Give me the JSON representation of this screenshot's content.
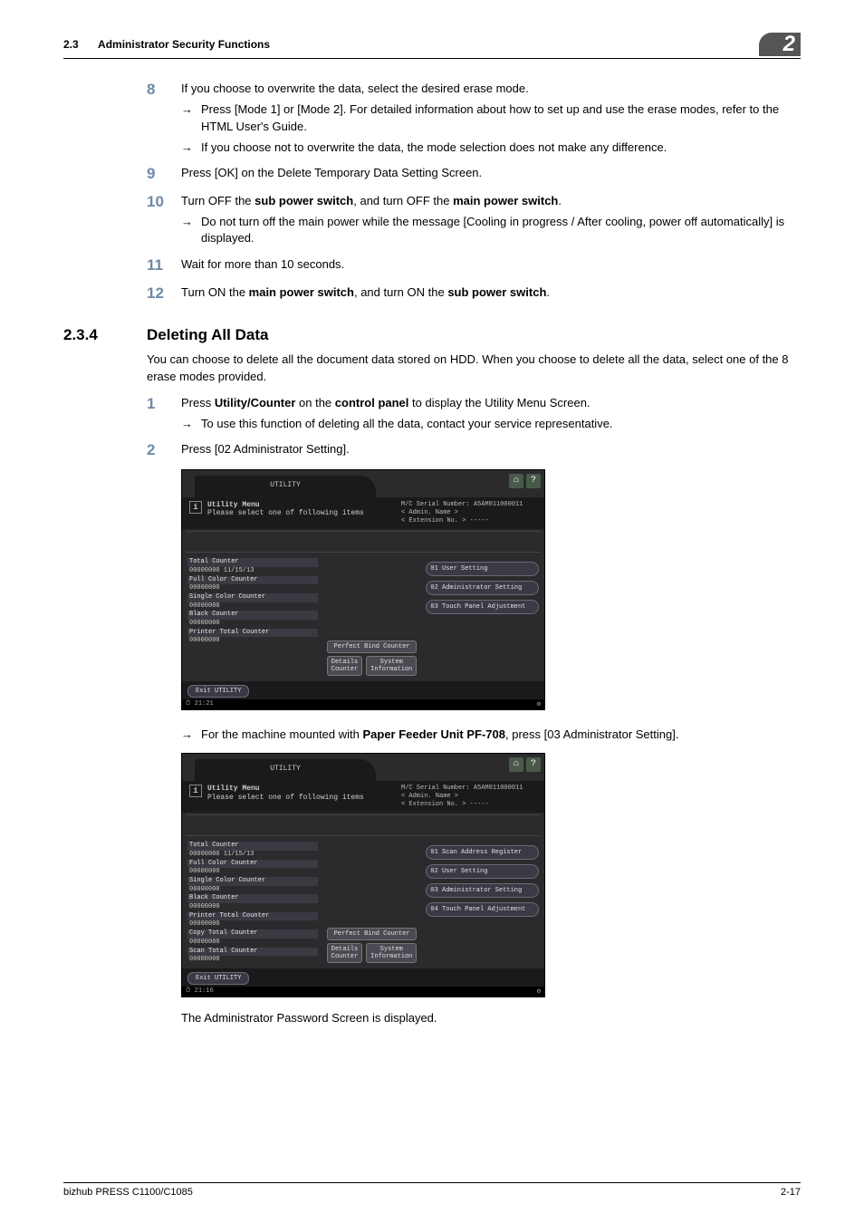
{
  "header": {
    "section_number": "2.3",
    "section_title": "Administrator Security Functions",
    "chapter_badge": "2"
  },
  "steps_a": [
    {
      "n": "8",
      "text": "If you choose to overwrite the data, select the desired erase mode.",
      "subs": [
        "Press [Mode 1] or [Mode 2]. For detailed information about how to set up and use the erase modes, refer to the HTML User's Guide.",
        "If you choose not to overwrite the data, the mode selection does not make any difference."
      ]
    },
    {
      "n": "9",
      "text": "Press [OK] on the Delete Temporary Data Setting Screen.",
      "subs": []
    },
    {
      "n": "10",
      "text_html": "Turn OFF the <b>sub power switch</b>, and turn OFF the <b>main power switch</b>.",
      "subs": [
        "Do not turn off the main power while the message [Cooling in progress / After cooling, power off automatically] is displayed."
      ]
    },
    {
      "n": "11",
      "text": "Wait for more than 10 seconds.",
      "subs": []
    },
    {
      "n": "12",
      "text_html": "Turn ON the <b>main power switch</b>, and turn ON the <b>sub power switch</b>.",
      "subs": []
    }
  ],
  "section234": {
    "num": "2.3.4",
    "title": "Deleting All Data",
    "intro": "You can choose to delete all the document data stored on HDD. When you choose to delete all the data, select one of the 8 erase modes provided."
  },
  "steps_b": [
    {
      "n": "1",
      "text_html": "Press <b>Utility/Counter</b> on the <b>control panel</b> to display the Utility Menu Screen.",
      "subs": [
        "To use this function of deleting all the data, contact your service representative."
      ]
    },
    {
      "n": "2",
      "text": "Press [02 Administrator Setting].",
      "subs": []
    }
  ],
  "after_screen1_sub_html": "For the machine mounted with <b>Paper Feeder Unit PF-708</b>, press [03 Administrator Setting].",
  "after_screen2_text": "The Administrator Password Screen is displayed.",
  "screen_common": {
    "tab": "UTILITY",
    "title_line1": "Utility Menu",
    "title_line2": "Please select one of following items",
    "serial": "M/C Serial Number: A5AM011000011",
    "admin": "< Admin. Name >",
    "ext": "< Extension No. >  -----",
    "perfect_bind": "Perfect Bind Counter",
    "details": "Details Counter",
    "sysinfo": "System Information",
    "exit": "Exit UTILITY",
    "status_icon": "⚙"
  },
  "screen1": {
    "counters": [
      {
        "hdr": true,
        "t": "Total Counter"
      },
      {
        "hdr": false,
        "t": "00000000   11/15/13"
      },
      {
        "hdr": true,
        "t": "Full Color Counter"
      },
      {
        "hdr": false,
        "t": "00000000"
      },
      {
        "hdr": true,
        "t": "Single Color Counter"
      },
      {
        "hdr": false,
        "t": "00000000"
      },
      {
        "hdr": true,
        "t": "Black Counter"
      },
      {
        "hdr": false,
        "t": "00000000"
      },
      {
        "hdr": true,
        "t": "Printer Total Counter"
      },
      {
        "hdr": false,
        "t": "00000000"
      }
    ],
    "menus": [
      "01 User Setting",
      "02 Administrator Setting",
      "03 Touch Panel Adjustment"
    ],
    "time": "⏱ 21:21"
  },
  "screen2": {
    "counters": [
      {
        "hdr": true,
        "t": "Total Counter"
      },
      {
        "hdr": false,
        "t": "00000000   11/15/13"
      },
      {
        "hdr": true,
        "t": "Full Color Counter"
      },
      {
        "hdr": false,
        "t": "00000000"
      },
      {
        "hdr": true,
        "t": "Single Color Counter"
      },
      {
        "hdr": false,
        "t": "00000000"
      },
      {
        "hdr": true,
        "t": "Black Counter"
      },
      {
        "hdr": false,
        "t": "00000000"
      },
      {
        "hdr": true,
        "t": "Printer Total Counter"
      },
      {
        "hdr": false,
        "t": "00000000"
      },
      {
        "hdr": true,
        "t": "Copy Total Counter"
      },
      {
        "hdr": false,
        "t": "00000000"
      },
      {
        "hdr": true,
        "t": "Scan Total Counter"
      },
      {
        "hdr": false,
        "t": "00000000"
      }
    ],
    "menus": [
      "01 Scan Address Register",
      "02 User Setting",
      "03 Administrator Setting",
      "04 Touch Panel Adjustment"
    ],
    "time": "⏱ 21:16"
  },
  "footer": {
    "left": "bizhub PRESS C1100/C1085",
    "right": "2-17"
  },
  "colors": {
    "step_num": "#6e8aa8",
    "badge_bg": "#555555",
    "screen_bg": "#2b2b2e",
    "screen_dark": "#1a1a1c"
  }
}
